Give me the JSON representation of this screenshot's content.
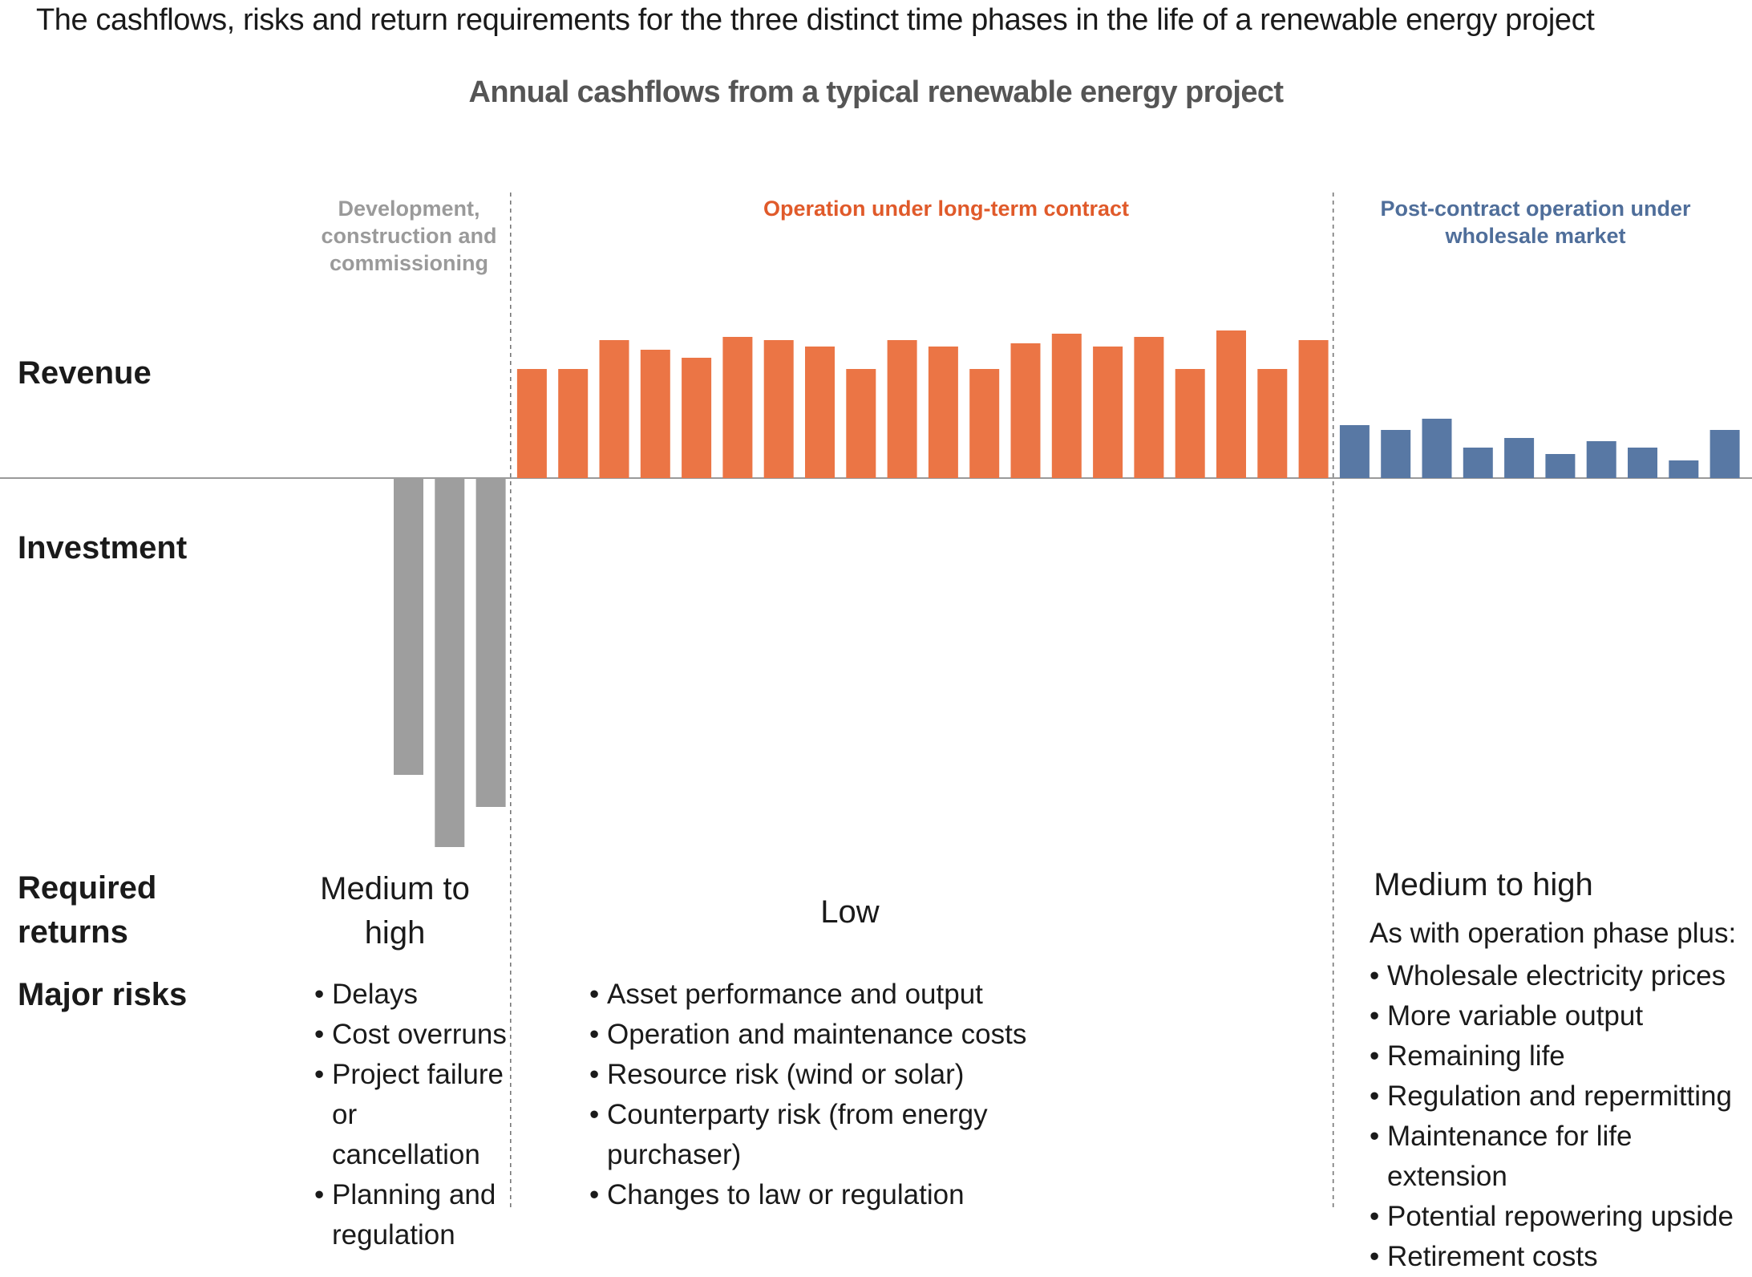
{
  "header": {
    "title": "The cashflows, risks and return requirements for the three distinct time phases in the life of a renewable energy project"
  },
  "chart_data": {
    "type": "bar",
    "title": "Annual cashflows from a typical renewable energy project",
    "xlabel": "",
    "ylabel": "",
    "ylim": [
      -490,
      200
    ],
    "grid": false,
    "legend": "none",
    "row_labels": {
      "revenue": "Revenue",
      "investment": "Investment"
    },
    "phases": [
      {
        "name": "Development, construction and commissioning",
        "color": "#9e9e9e",
        "values": [
          -370,
          -460,
          -410
        ]
      },
      {
        "name": "Operation under long-term contract",
        "color": "#eb7545",
        "values": [
          136,
          136,
          172,
          160,
          150,
          176,
          172,
          164,
          136,
          172,
          164,
          136,
          168,
          180,
          164,
          176,
          136,
          184,
          136,
          172
        ]
      },
      {
        "name": "Post-contract operation under wholesale market",
        "color": "#5878a4",
        "values": [
          66,
          60,
          74,
          38,
          50,
          30,
          46,
          38,
          22,
          60
        ]
      }
    ]
  },
  "required_returns": {
    "label": "Required returns",
    "development": "Medium to high",
    "operation": "Low",
    "post_contract": "Medium to high"
  },
  "major_risks": {
    "label": "Major risks",
    "development": [
      "Delays",
      "Cost overruns",
      "Project failure or cancellation",
      "Planning and regulation"
    ],
    "operation": [
      "Asset performance and output",
      "Operation and maintenance costs",
      "Resource risk (wind or solar)",
      "Counterparty risk (from energy purchaser)",
      "Changes to law or regulation"
    ],
    "post_contract_intro": "As with operation phase plus:",
    "post_contract": [
      "Wholesale electricity prices",
      "More variable output",
      "Remaining life",
      "Regulation and repermitting",
      "Maintenance for life extension",
      "Potential repowering upside",
      "Retirement costs"
    ]
  }
}
